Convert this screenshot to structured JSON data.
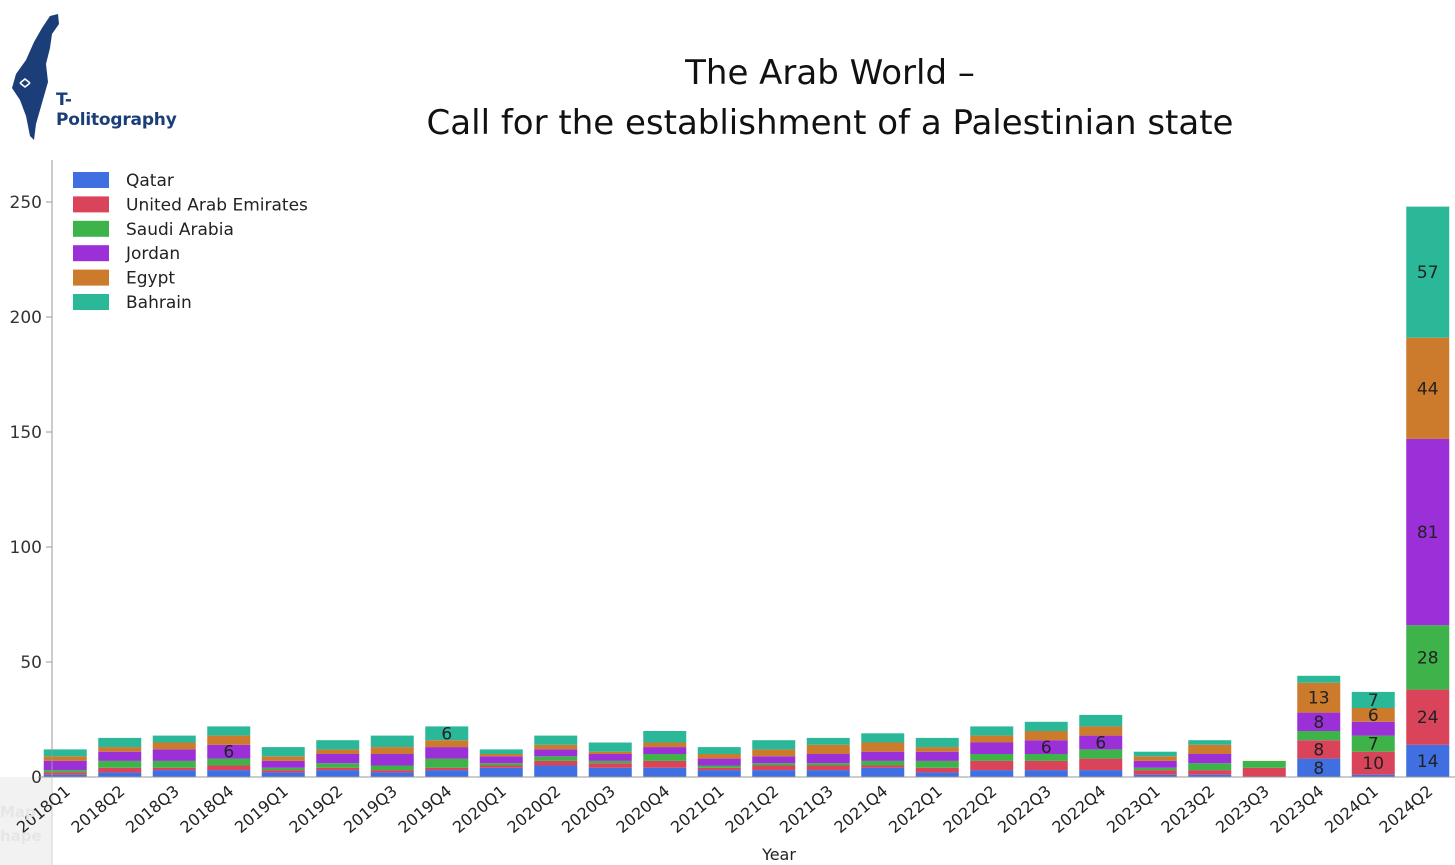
{
  "logo": {
    "text": "T-Politography",
    "color": "#1b3e78"
  },
  "title": {
    "line1": "The Arab World –",
    "line2": "Call for the establishment of a Palestinian state"
  },
  "watermark": {
    "line1": "Map",
    "line2": "hape"
  },
  "chart_data": {
    "type": "bar",
    "stacked": true,
    "xlabel": "Year",
    "ylabel": "",
    "ylim": [
      0,
      260
    ],
    "yticks": [
      0,
      50,
      100,
      150,
      200,
      250
    ],
    "legend_position": "top-left",
    "grid": false,
    "categories": [
      "2018Q1",
      "2018Q2",
      "2018Q3",
      "2018Q4",
      "2019Q1",
      "2019Q2",
      "2019Q3",
      "2019Q4",
      "2020Q1",
      "2020Q2",
      "2020Q3",
      "2020Q4",
      "2021Q1",
      "2021Q2",
      "2021Q3",
      "2021Q4",
      "2022Q1",
      "2022Q2",
      "2022Q3",
      "2022Q4",
      "2023Q1",
      "2023Q2",
      "2023Q3",
      "2023Q4",
      "2024Q1",
      "2024Q2"
    ],
    "series": [
      {
        "name": "Qatar",
        "color": "#3f6fe0",
        "values": [
          1,
          2,
          3,
          3,
          2,
          3,
          2,
          3,
          4,
          5,
          4,
          4,
          3,
          3,
          3,
          4,
          2,
          3,
          3,
          3,
          1,
          1,
          0,
          8,
          1,
          14
        ]
      },
      {
        "name": "United Arab Emirates",
        "color": "#d9445a",
        "values": [
          1,
          2,
          1,
          2,
          1,
          1,
          1,
          1,
          1,
          2,
          2,
          3,
          1,
          2,
          2,
          1,
          2,
          4,
          4,
          5,
          2,
          2,
          4,
          8,
          10,
          24
        ]
      },
      {
        "name": "Saudi Arabia",
        "color": "#3db34a",
        "values": [
          1,
          3,
          3,
          3,
          1,
          2,
          2,
          4,
          1,
          2,
          1,
          3,
          1,
          1,
          1,
          2,
          3,
          3,
          3,
          4,
          1,
          3,
          3,
          4,
          7,
          28
        ]
      },
      {
        "name": "Jordan",
        "color": "#9b2fd8",
        "values": [
          4,
          4,
          5,
          6,
          3,
          4,
          5,
          5,
          3,
          3,
          3,
          3,
          3,
          3,
          4,
          4,
          4,
          5,
          6,
          6,
          3,
          4,
          0,
          8,
          6,
          81
        ]
      },
      {
        "name": "Egypt",
        "color": "#cc7a2b",
        "values": [
          2,
          2,
          3,
          4,
          2,
          2,
          3,
          3,
          1,
          2,
          1,
          2,
          2,
          3,
          4,
          4,
          2,
          3,
          4,
          4,
          2,
          4,
          0,
          13,
          6,
          44
        ]
      },
      {
        "name": "Bahrain",
        "color": "#2bb899",
        "values": [
          3,
          4,
          3,
          4,
          4,
          4,
          5,
          6,
          2,
          4,
          4,
          5,
          3,
          4,
          3,
          4,
          4,
          4,
          4,
          5,
          2,
          2,
          0,
          3,
          7,
          57
        ]
      }
    ],
    "data_labels_shown": [
      {
        "category": "2018Q4",
        "series": "Jordan",
        "value": 6
      },
      {
        "category": "2019Q4",
        "series": "Bahrain",
        "value": 6
      },
      {
        "category": "2022Q3",
        "series": "Jordan",
        "value": 6
      },
      {
        "category": "2022Q4",
        "series": "Jordan",
        "value": 6
      },
      {
        "category": "2023Q4",
        "series": "Qatar",
        "value": 8
      },
      {
        "category": "2023Q4",
        "series": "United Arab Emirates",
        "value": 8
      },
      {
        "category": "2023Q4",
        "series": "Jordan",
        "value": 8
      },
      {
        "category": "2023Q4",
        "series": "Egypt",
        "value": 13
      },
      {
        "category": "2024Q1",
        "series": "United Arab Emirates",
        "value": 10
      },
      {
        "category": "2024Q1",
        "series": "Saudi Arabia",
        "value": 7
      },
      {
        "category": "2024Q1",
        "series": "Egypt",
        "value": 6
      },
      {
        "category": "2024Q1",
        "series": "Bahrain",
        "value": 7
      },
      {
        "category": "2024Q2",
        "series": "Qatar",
        "value": 14
      },
      {
        "category": "2024Q2",
        "series": "United Arab Emirates",
        "value": 24
      },
      {
        "category": "2024Q2",
        "series": "Saudi Arabia",
        "value": 28
      },
      {
        "category": "2024Q2",
        "series": "Jordan",
        "value": 81
      },
      {
        "category": "2024Q2",
        "series": "Egypt",
        "value": 44
      },
      {
        "category": "2024Q2",
        "series": "Bahrain",
        "value": 57
      }
    ]
  }
}
